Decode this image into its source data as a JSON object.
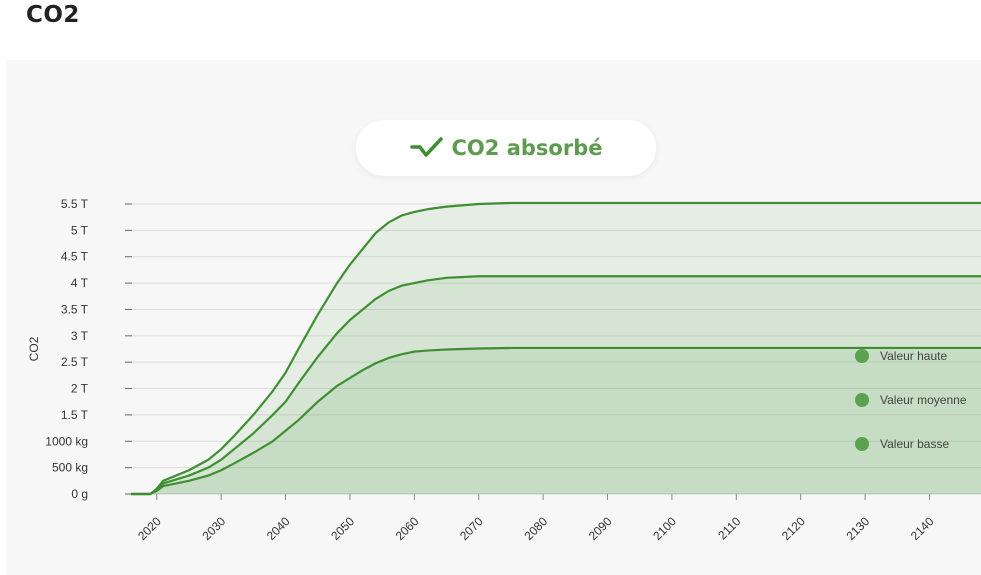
{
  "page": {
    "title": "CO2"
  },
  "badge": {
    "icon": "trend-line-icon",
    "label": "CO2 absorbé"
  },
  "colors": {
    "series_line": "#3f8f32",
    "legend_dot": "#5aa24e",
    "fill": "#4f9e44"
  },
  "chart_data": {
    "type": "area",
    "title": "CO2 absorbé",
    "ylabel": "CO2",
    "xlabel": "",
    "y_unit": "kg",
    "ylim_kg": [
      0,
      5500
    ],
    "yticks": [
      {
        "value": 0,
        "label": "0 g"
      },
      {
        "value": 500,
        "label": "500 kg"
      },
      {
        "value": 1000,
        "label": "1000 kg"
      },
      {
        "value": 1500,
        "label": "1.5 T"
      },
      {
        "value": 2000,
        "label": "2 T"
      },
      {
        "value": 2500,
        "label": "2.5 T"
      },
      {
        "value": 3000,
        "label": "3 T"
      },
      {
        "value": 3500,
        "label": "3.5 T"
      },
      {
        "value": 4000,
        "label": "4 T"
      },
      {
        "value": 4500,
        "label": "4.5 T"
      },
      {
        "value": 5000,
        "label": "5 T"
      },
      {
        "value": 5500,
        "label": "5.5 T"
      }
    ],
    "xlim": [
      2016,
      2148
    ],
    "xticks": [
      "2020",
      "2030",
      "2040",
      "2050",
      "2060",
      "2070",
      "2080",
      "2090",
      "2100",
      "2110",
      "2120",
      "2130",
      "2140"
    ],
    "grid": true,
    "legend_position": "right",
    "x": [
      2016,
      2019,
      2020,
      2021,
      2025,
      2028,
      2030,
      2032,
      2035,
      2038,
      2040,
      2042,
      2045,
      2048,
      2050,
      2052,
      2054,
      2056,
      2058,
      2060,
      2062,
      2065,
      2070,
      2075,
      2080,
      2100,
      2120,
      2148
    ],
    "series": [
      {
        "name": "Valeur haute",
        "values": [
          0,
          0,
          100,
          250,
          450,
          650,
          850,
          1100,
          1500,
          1950,
          2300,
          2750,
          3400,
          4000,
          4350,
          4650,
          4950,
          5150,
          5280,
          5350,
          5400,
          5450,
          5500,
          5520,
          5520,
          5520,
          5520,
          5520
        ]
      },
      {
        "name": "Valeur moyenne",
        "values": [
          0,
          0,
          80,
          200,
          350,
          500,
          650,
          850,
          1150,
          1500,
          1750,
          2100,
          2600,
          3050,
          3300,
          3500,
          3700,
          3850,
          3950,
          4000,
          4050,
          4100,
          4130,
          4130,
          4130,
          4130,
          4130,
          4130
        ]
      },
      {
        "name": "Valeur basse",
        "values": [
          0,
          0,
          60,
          150,
          250,
          350,
          450,
          580,
          780,
          1000,
          1200,
          1400,
          1750,
          2050,
          2200,
          2350,
          2480,
          2580,
          2650,
          2700,
          2720,
          2740,
          2760,
          2770,
          2770,
          2770,
          2770,
          2770
        ]
      }
    ]
  }
}
